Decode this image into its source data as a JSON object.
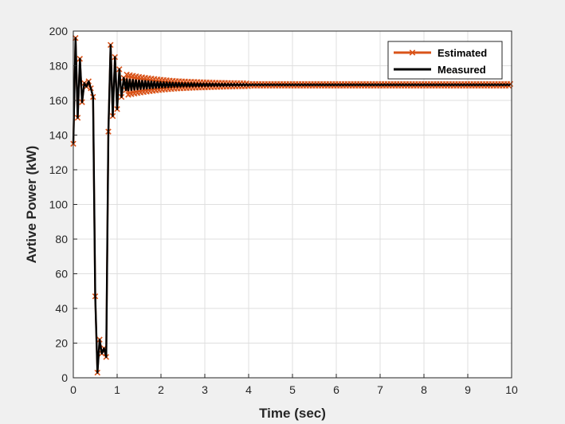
{
  "chart_data": {
    "type": "line",
    "xlabel": "Time (sec)",
    "ylabel": "Avtive Power (kW)",
    "xlim": [
      0,
      10
    ],
    "ylim": [
      0,
      200
    ],
    "xticks": [
      0,
      1,
      2,
      3,
      4,
      5,
      6,
      7,
      8,
      9,
      10
    ],
    "xtick_labels": [
      "0",
      "1",
      "2",
      "3",
      "4",
      "5",
      "6",
      "7",
      "8",
      "9",
      "10"
    ],
    "yticks": [
      0,
      20,
      40,
      60,
      80,
      100,
      120,
      140,
      160,
      180,
      200
    ],
    "ytick_labels": [
      "0",
      "20",
      "40",
      "60",
      "80",
      "100",
      "120",
      "140",
      "160",
      "180",
      "200"
    ],
    "grid": true,
    "legend_position": "top-right",
    "colors": {
      "estimated": "#d95319",
      "measured": "#000000"
    },
    "series": [
      {
        "name": "Estimated",
        "marker": "x",
        "style": "line-with-markers",
        "x": [
          0,
          0.05,
          0.1,
          0.15,
          0.2,
          0.25,
          0.3,
          0.35,
          0.4,
          0.45,
          0.5,
          0.55,
          0.6,
          0.65,
          0.7,
          0.75,
          0.8,
          0.85,
          0.9,
          0.95,
          1.0,
          1.05,
          1.1,
          1.15,
          1.2,
          1.5,
          2.0,
          2.5,
          3.0,
          3.5,
          4.0,
          5.0,
          6.0,
          7.0,
          8.0,
          9.0,
          10.0
        ],
        "y": [
          135,
          196,
          150,
          184,
          159,
          170,
          168,
          171,
          167,
          162,
          47,
          3,
          22,
          14,
          17,
          12,
          142,
          192,
          151,
          185,
          155,
          178,
          162,
          173,
          166,
          172,
          170,
          169,
          170,
          169,
          169,
          169,
          169,
          169,
          169,
          169,
          169
        ]
      },
      {
        "name": "Measured",
        "marker": "none",
        "style": "line",
        "x": [
          0,
          0.05,
          0.1,
          0.15,
          0.2,
          0.25,
          0.3,
          0.35,
          0.4,
          0.45,
          0.5,
          0.55,
          0.6,
          0.65,
          0.7,
          0.75,
          0.8,
          0.85,
          0.9,
          0.95,
          1.0,
          1.05,
          1.1,
          1.15,
          1.2,
          1.5,
          2.0,
          2.5,
          3.0,
          3.5,
          4.0,
          5.0,
          6.0,
          7.0,
          8.0,
          9.0,
          10.0
        ],
        "y": [
          135,
          196,
          150,
          184,
          159,
          170,
          168,
          171,
          167,
          162,
          47,
          3,
          22,
          14,
          17,
          12,
          142,
          192,
          151,
          185,
          155,
          178,
          162,
          173,
          166,
          170,
          169,
          169,
          169,
          169,
          169,
          169,
          169,
          169,
          169,
          169,
          169
        ]
      }
    ]
  }
}
